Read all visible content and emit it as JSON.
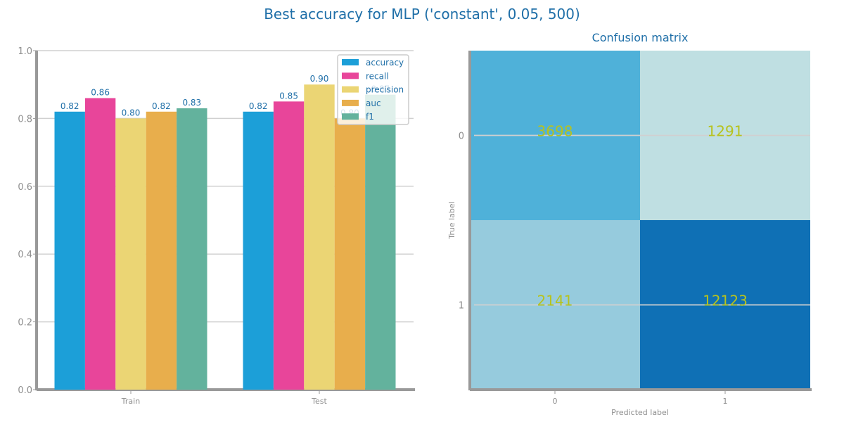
{
  "figure": {
    "suptitle": "Best accuracy for MLP ('constant', 0.05, 500)"
  },
  "chart_data": [
    {
      "type": "bar",
      "title": "",
      "xlabel": "",
      "ylabel": "",
      "categories": [
        "Train",
        "Test"
      ],
      "ylim": [
        0,
        1.0
      ],
      "yticks": [
        "0.0",
        "0.2",
        "0.4",
        "0.6",
        "0.8",
        "1.0"
      ],
      "grid": "horizontal",
      "legend_position": "top-right",
      "series": [
        {
          "name": "accuracy",
          "color": "#1c9fd8",
          "values": [
            0.82,
            0.82
          ],
          "labels": [
            "0.82",
            "0.82"
          ]
        },
        {
          "name": "recall",
          "color": "#e8459a",
          "values": [
            0.86,
            0.85
          ],
          "labels": [
            "0.86",
            "0.85"
          ]
        },
        {
          "name": "precision",
          "color": "#ebd574",
          "values": [
            0.8,
            0.9
          ],
          "labels": [
            "0.80",
            "0.90"
          ]
        },
        {
          "name": "auc",
          "color": "#e8ae4c",
          "values": [
            0.82,
            0.8
          ],
          "labels": [
            "0.82",
            "0.80"
          ]
        },
        {
          "name": "f1",
          "color": "#63b29d",
          "values": [
            0.83,
            0.87
          ],
          "labels": [
            "0.83",
            "0.87"
          ]
        }
      ]
    },
    {
      "type": "heatmap",
      "title": "Confusion matrix",
      "xlabel": "Predicted label",
      "ylabel": "True label",
      "x_categories": [
        "0",
        "1"
      ],
      "y_categories": [
        "0",
        "1"
      ],
      "values": [
        [
          3698,
          1291
        ],
        [
          2141,
          12123
        ]
      ],
      "cell_colors": [
        [
          "#4fb1d9",
          "#bfdfe2"
        ],
        [
          "#96cbdd",
          "#0f70b5"
        ]
      ],
      "annotation_color": "#b7c21e"
    }
  ]
}
